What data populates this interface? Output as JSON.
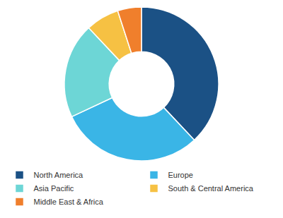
{
  "chart_data": {
    "type": "donut",
    "categories": [
      "North America",
      "Europe",
      "Asia Pacific",
      "South & Central America",
      "Middle East & Africa"
    ],
    "values": [
      38,
      30,
      20,
      7,
      5
    ],
    "colors": [
      "#1b5185",
      "#3ab5e6",
      "#6dd6d6",
      "#f6c143",
      "#f07f2c"
    ],
    "legend": "bottom"
  }
}
